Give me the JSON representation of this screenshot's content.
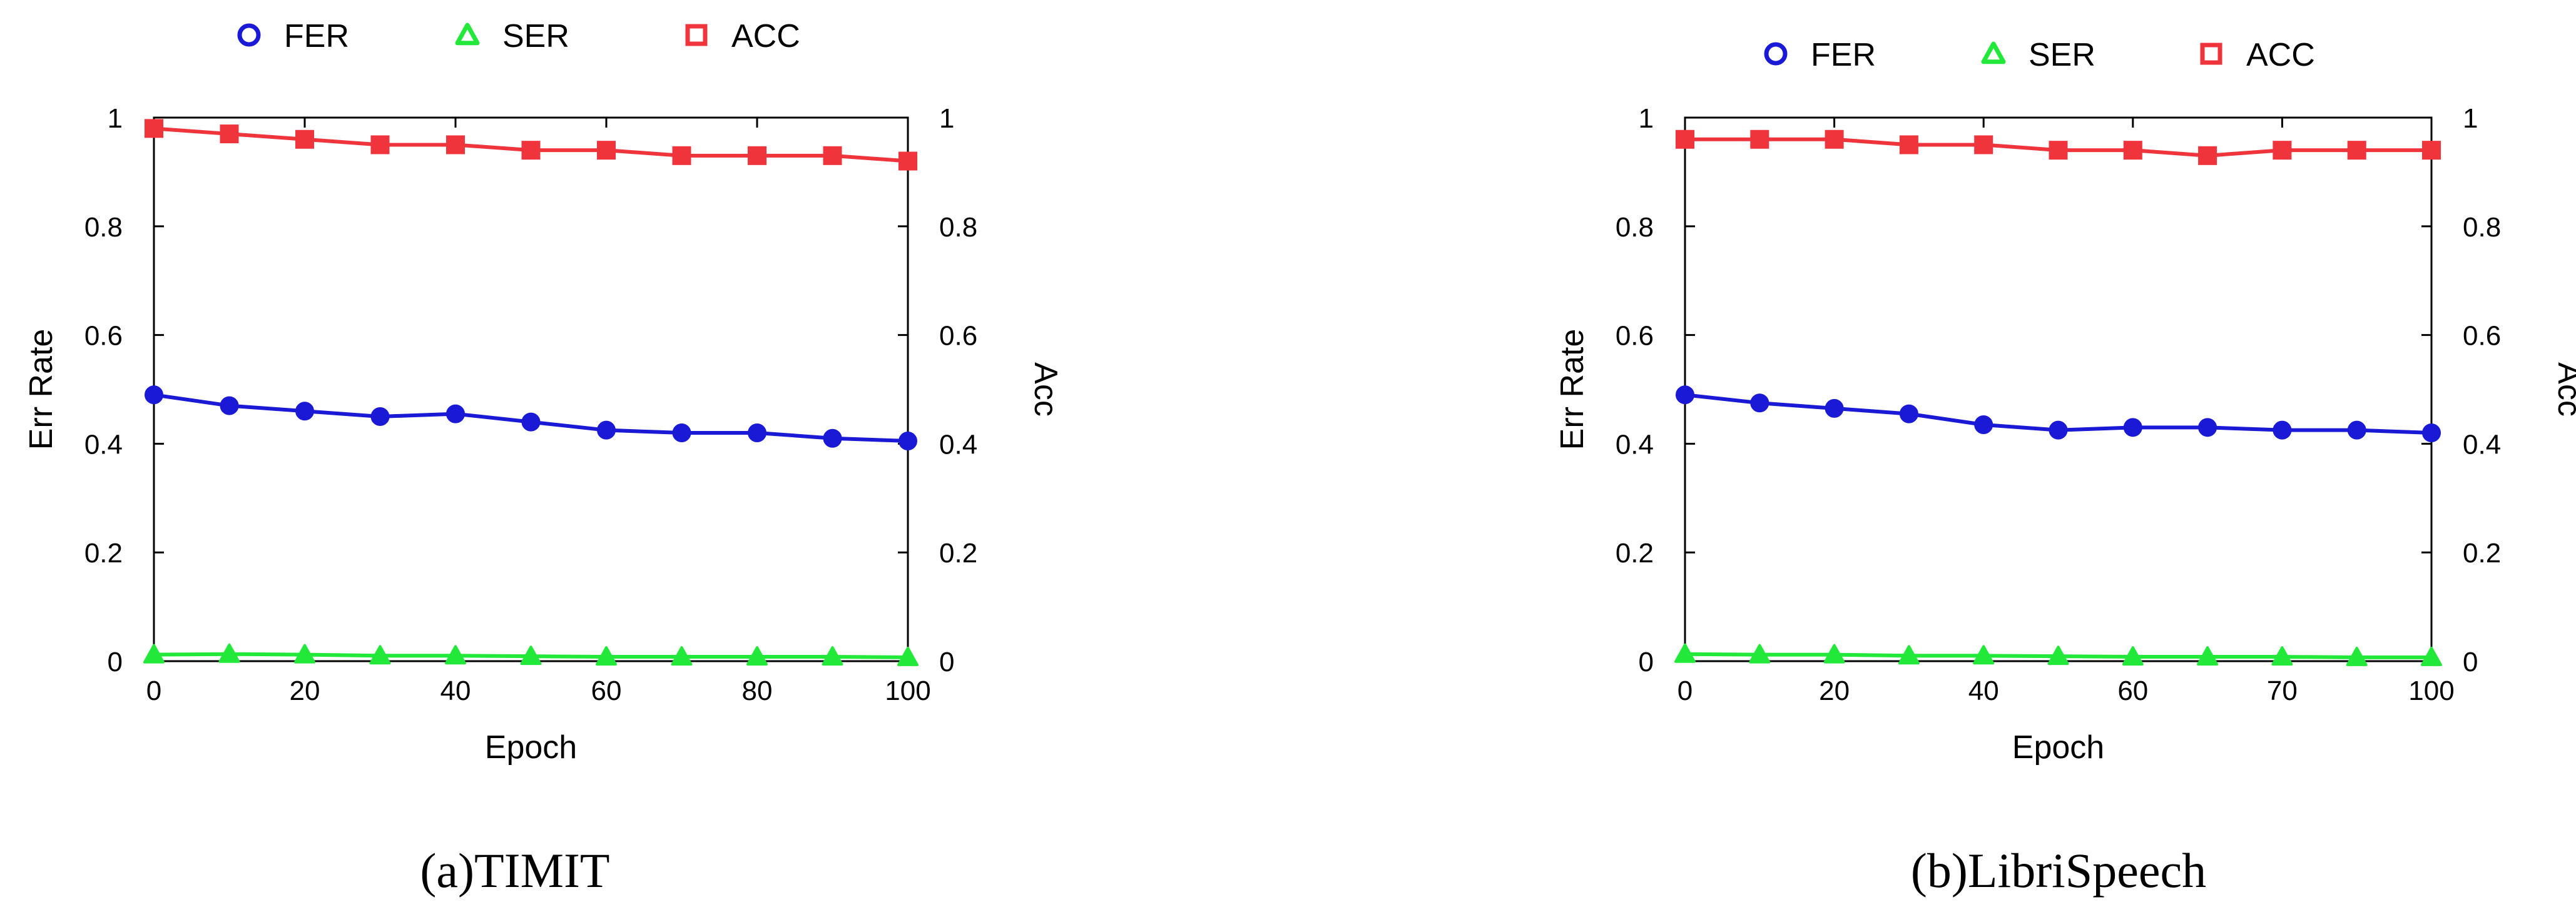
{
  "chart_data": [
    {
      "type": "line",
      "caption": "(a)TIMIT",
      "xlabel": "Epoch",
      "ylabel_left": "Err Rate",
      "ylabel_right": "Acc",
      "xlim": [
        0,
        100
      ],
      "ylim": [
        0,
        1
      ],
      "xticks": [
        0,
        20,
        40,
        60,
        80,
        100
      ],
      "yticks": [
        "0",
        "0.2",
        "0.4",
        "0.6",
        "0.8",
        "1"
      ],
      "ytick_values": [
        0,
        0.2,
        0.4,
        0.6,
        0.8,
        1
      ],
      "legend_position": "top",
      "grid": false,
      "series": [
        {
          "name": "FER",
          "marker": "circle",
          "color": "#1a1ad6",
          "x": [
            0,
            10,
            20,
            30,
            40,
            50,
            60,
            70,
            80,
            90,
            100
          ],
          "y": [
            0.49,
            0.47,
            0.46,
            0.45,
            0.455,
            0.44,
            0.425,
            0.42,
            0.42,
            0.41,
            0.405
          ]
        },
        {
          "name": "SER",
          "marker": "triangle",
          "color": "#22e83a",
          "x": [
            0,
            10,
            20,
            30,
            40,
            50,
            60,
            70,
            80,
            90,
            100
          ],
          "y": [
            0.012,
            0.013,
            0.012,
            0.01,
            0.01,
            0.009,
            0.008,
            0.008,
            0.008,
            0.008,
            0.007
          ]
        },
        {
          "name": "ACC",
          "marker": "square",
          "color": "#f0343c",
          "x": [
            0,
            10,
            20,
            30,
            40,
            50,
            60,
            70,
            80,
            90,
            100
          ],
          "y": [
            0.98,
            0.97,
            0.96,
            0.95,
            0.95,
            0.94,
            0.94,
            0.93,
            0.93,
            0.93,
            0.92
          ]
        }
      ]
    },
    {
      "type": "line",
      "caption": "(b)LibriSpeech",
      "xlabel": "Epoch",
      "ylabel_left": "Err Rate",
      "ylabel_right": "Acc",
      "xlim": [
        0,
        100
      ],
      "ylim": [
        0,
        1
      ],
      "xticks": [
        0,
        20,
        40,
        60,
        70,
        100
      ],
      "yticks": [
        "0",
        "0.2",
        "0.4",
        "0.6",
        "0.8",
        "1"
      ],
      "ytick_values": [
        0,
        0.2,
        0.4,
        0.6,
        0.8,
        1
      ],
      "legend_position": "top",
      "grid": false,
      "series": [
        {
          "name": "FER",
          "marker": "circle",
          "color": "#1a1ad6",
          "x": [
            0,
            10,
            20,
            30,
            40,
            50,
            60,
            70,
            80,
            90,
            100
          ],
          "y": [
            0.49,
            0.475,
            0.465,
            0.455,
            0.435,
            0.425,
            0.43,
            0.43,
            0.425,
            0.425,
            0.42
          ]
        },
        {
          "name": "SER",
          "marker": "triangle",
          "color": "#22e83a",
          "x": [
            0,
            10,
            20,
            30,
            40,
            50,
            60,
            70,
            80,
            90,
            100
          ],
          "y": [
            0.013,
            0.012,
            0.012,
            0.01,
            0.01,
            0.009,
            0.008,
            0.008,
            0.008,
            0.007,
            0.007
          ]
        },
        {
          "name": "ACC",
          "marker": "square",
          "color": "#f0343c",
          "x": [
            0,
            10,
            20,
            30,
            40,
            50,
            60,
            70,
            80,
            90,
            100
          ],
          "y": [
            0.96,
            0.96,
            0.96,
            0.95,
            0.95,
            0.94,
            0.94,
            0.93,
            0.94,
            0.94,
            0.94
          ]
        }
      ]
    }
  ]
}
